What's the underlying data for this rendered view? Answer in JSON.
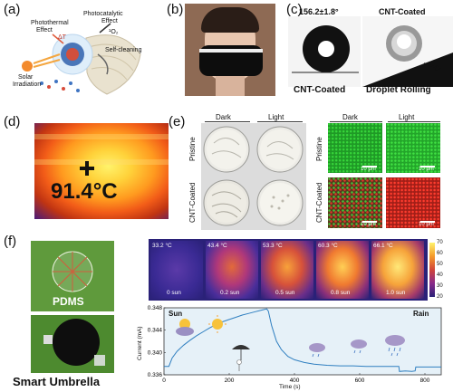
{
  "panels": {
    "a": {
      "label": "(a)",
      "texts": {
        "photothermal": "Photothermal",
        "effect1": "Effect",
        "photocatalytic": "Photocatalytic",
        "effect2": "Effect",
        "delta_t": "ΔT",
        "singlet_o2": "¹O₂",
        "self_cleaning": "Self-cleaning",
        "solar": "Solar",
        "irradiation": "Irradiation"
      }
    },
    "b": {
      "label": "(b)"
    },
    "c": {
      "label": "(c)",
      "angle": "156.2±1.8°",
      "title_right": "CNT-Coated",
      "caption_left": "CNT-Coated",
      "caption_right": "Droplet Rolling"
    },
    "d": {
      "label": "(d)",
      "temperature": "91.4°C"
    },
    "e": {
      "label": "(e)",
      "col_dark": "Dark",
      "col_light": "Light",
      "row_pristine": "Pristine",
      "row_cnt": "CNT-Coated",
      "scale": "10 μm"
    },
    "f": {
      "label": "(f)",
      "pdms": "PDMS",
      "smart_umbrella": "Smart Umbrella",
      "thermal_temps": [
        "33.2 °C",
        "43.4 °C",
        "53.3 °C",
        "60.3 °C",
        "66.1 °C"
      ],
      "thermal_suns": [
        "0 sun",
        "0.2 sun",
        "0.5 sun",
        "0.8 sun",
        "1.0 sun"
      ],
      "colorbar_ticks": [
        "70",
        "60",
        "50",
        "40",
        "30",
        "20"
      ],
      "sun_label": "Sun",
      "rain_label": "Rain"
    }
  },
  "chart_data": {
    "type": "line",
    "title": "",
    "xlabel": "Time (s)",
    "ylabel": "Current (mA)",
    "xlim": [
      0,
      850
    ],
    "ylim": [
      0.336,
      0.348
    ],
    "xticks": [
      0,
      200,
      400,
      600,
      800
    ],
    "yticks": [
      0.336,
      0.34,
      0.344,
      0.348
    ],
    "xtick_labels": [
      "0",
      "200",
      "400",
      "600",
      "800"
    ],
    "ytick_labels": [
      "0.336",
      "0.340",
      "0.344",
      "0.348"
    ],
    "series": [
      {
        "color": "#2f7fc0",
        "x": [
          0,
          15,
          25,
          40,
          60,
          80,
          100,
          120,
          140,
          160,
          180,
          200,
          220,
          240,
          260,
          280,
          300,
          315,
          320,
          330,
          345,
          360,
          380,
          400,
          430,
          460,
          500,
          540,
          580,
          620,
          660,
          700,
          720,
          722,
          740,
          760,
          770,
          772,
          800,
          850
        ],
        "y": [
          0.3375,
          0.3375,
          0.339,
          0.3402,
          0.3413,
          0.3422,
          0.343,
          0.3437,
          0.3444,
          0.345,
          0.3455,
          0.3459,
          0.3463,
          0.3467,
          0.347,
          0.3473,
          0.3476,
          0.3478,
          0.3474,
          0.3448,
          0.342,
          0.3405,
          0.3393,
          0.3387,
          0.3382,
          0.3379,
          0.3377,
          0.3376,
          0.3376,
          0.3375,
          0.3375,
          0.3375,
          0.3375,
          0.3366,
          0.3367,
          0.3366,
          0.3367,
          0.3374,
          0.3374,
          0.3374
        ]
      }
    ]
  }
}
